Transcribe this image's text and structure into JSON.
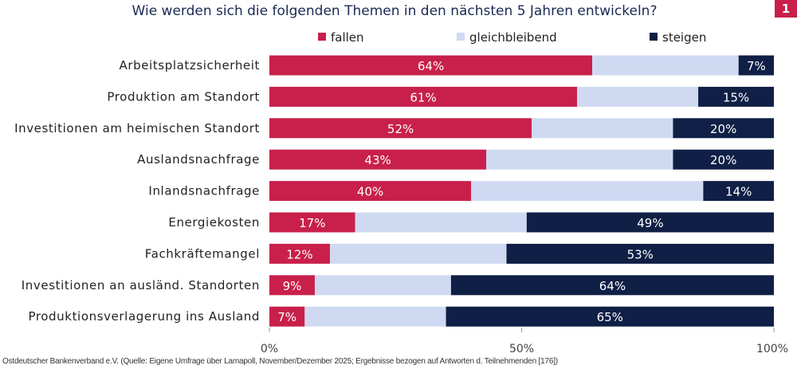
{
  "chart_data": {
    "type": "bar",
    "orientation": "horizontal",
    "stacked": true,
    "title": "Wie werden sich die folgenden Themen in den nächsten 5 Jahren entwickeln?",
    "categories": [
      "Arbeitsplatzsicherheit",
      "Produktion am Standort",
      "Investitionen am heimischen Standort",
      "Auslandsnachfrage",
      "Inlandsnachfrage",
      "Energiekosten",
      "Fachkräftemangel",
      "Investitionen an ausländ. Standorten",
      "Produktionsverlagerung ins Ausland"
    ],
    "series": [
      {
        "name": "fallen",
        "color": "#c8204b",
        "values": [
          64,
          61,
          52,
          43,
          40,
          17,
          12,
          9,
          7
        ],
        "labeled": true
      },
      {
        "name": "gleichbleibend",
        "color": "#cfdaf2",
        "values": [
          29,
          24,
          28,
          37,
          46,
          34,
          35,
          27,
          28
        ],
        "labeled": false
      },
      {
        "name": "steigen",
        "color": "#0f1f45",
        "values": [
          7,
          15,
          20,
          20,
          14,
          49,
          53,
          64,
          65
        ],
        "labeled": true
      }
    ],
    "xlim": [
      0,
      100
    ],
    "xticks": [
      "0%",
      "50%",
      "100%"
    ],
    "legend": "top",
    "grid": false
  },
  "badge": "1",
  "footer": "Ostdeutscher Bankenverband e.V. (Quelle: Eigene Umfrage über Lamapoll, November/Dezember 2025; Ergebnisse bezogen auf Antworten d. Teilnehmenden [176])"
}
